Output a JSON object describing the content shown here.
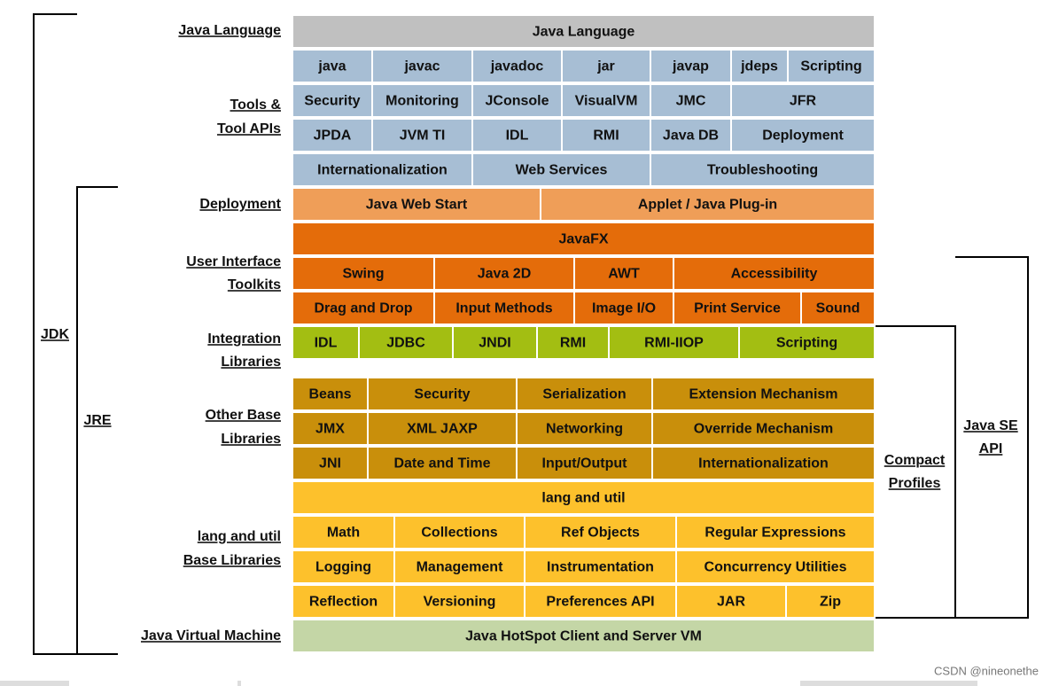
{
  "left_labels": [
    [
      "Java Language"
    ],
    [
      "Tools &",
      "Tool APIs"
    ],
    [
      "Deployment"
    ],
    [
      "User Interface",
      "Toolkits"
    ],
    [
      "Integration",
      "Libraries"
    ],
    [
      "Other Base",
      "Libraries"
    ],
    [
      "lang and util",
      "Base Libraries"
    ],
    [
      "Java Virtual Machine"
    ]
  ],
  "rows": [
    [
      "Java Language"
    ],
    [
      "java",
      "javac",
      "javadoc",
      "jar",
      "javap",
      "jdeps",
      "Scripting"
    ],
    [
      "Security",
      "Monitoring",
      "JConsole",
      "VisualVM",
      "JMC",
      "JFR"
    ],
    [
      "JPDA",
      "JVM TI",
      "IDL",
      "RMI",
      "Java DB",
      "Deployment"
    ],
    [
      "Internationalization",
      "Web Services",
      "Troubleshooting"
    ],
    [
      "Java Web Start",
      "Applet / Java Plug-in"
    ],
    [
      "JavaFX"
    ],
    [
      "Swing",
      "Java 2D",
      "AWT",
      "Accessibility"
    ],
    [
      "Drag and Drop",
      "Input Methods",
      "Image I/O",
      "Print Service",
      "Sound"
    ],
    [
      "IDL",
      "JDBC",
      "JNDI",
      "RMI",
      "RMI-IIOP",
      "Scripting"
    ],
    [
      "Beans",
      "Security",
      "Serialization",
      "Extension Mechanism"
    ],
    [
      "JMX",
      "XML JAXP",
      "Networking",
      "Override Mechanism"
    ],
    [
      "JNI",
      "Date and Time",
      "Input/Output",
      "Internationalization"
    ],
    [
      "lang and util"
    ],
    [
      "Math",
      "Collections",
      "Ref Objects",
      "Regular Expressions"
    ],
    [
      "Logging",
      "Management",
      "Instrumentation",
      "Concurrency Utilities"
    ],
    [
      "Reflection",
      "Versioning",
      "Preferences API",
      "JAR",
      "Zip"
    ],
    [
      "Java HotSpot Client and Server VM"
    ]
  ],
  "brackets": {
    "jdk": [
      "JDK"
    ],
    "jre": [
      "JRE"
    ],
    "compact_profiles": [
      "Compact",
      "Profiles"
    ],
    "java_se_api": [
      "Java SE",
      "API"
    ]
  },
  "watermark": "CSDN @nineonethe"
}
